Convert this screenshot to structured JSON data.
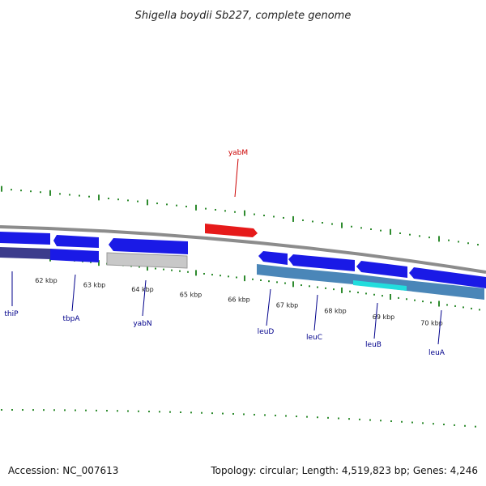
{
  "title": "Shigella boydii Sb227, complete genome",
  "footer": {
    "accession": "Accession: NC_007613",
    "stats": "Topology: circular; Length: 4,519,823 bp; Genes: 4,246"
  },
  "colors": {
    "backbone": "#8c8c8c",
    "tick": "#2e8b2e",
    "gene_reverse": "#1a1ae6",
    "gene_forward": "#e61a1a",
    "gene_grey": "#c8c8c8",
    "cds_steel": "#4a86b8",
    "cds_navy": "#3c3c8c",
    "cds_cyan": "#22dddd",
    "label_blue": "#00008b",
    "label_red": "#cc0000"
  },
  "scale": {
    "unit": "kbp",
    "ticks": [
      {
        "kbp": 62,
        "label": "62 kbp"
      },
      {
        "kbp": 63,
        "label": "63 kbp"
      },
      {
        "kbp": 64,
        "label": "64 kbp"
      },
      {
        "kbp": 65,
        "label": "65 kbp"
      },
      {
        "kbp": 66,
        "label": "66 kbp"
      },
      {
        "kbp": 67,
        "label": "67 kbp"
      },
      {
        "kbp": 68,
        "label": "68 kbp"
      },
      {
        "kbp": 69,
        "label": "69 kbp"
      },
      {
        "kbp": 70,
        "label": "70 kbp"
      }
    ]
  },
  "genes": [
    {
      "name": "thiP",
      "strand": "reverse"
    },
    {
      "name": "tbpA",
      "strand": "reverse"
    },
    {
      "name": "yabN",
      "strand": "reverse"
    },
    {
      "name": "yabM",
      "strand": "forward"
    },
    {
      "name": "leuD",
      "strand": "reverse"
    },
    {
      "name": "leuC",
      "strand": "reverse"
    },
    {
      "name": "leuB",
      "strand": "reverse"
    },
    {
      "name": "leuA",
      "strand": "reverse"
    }
  ]
}
